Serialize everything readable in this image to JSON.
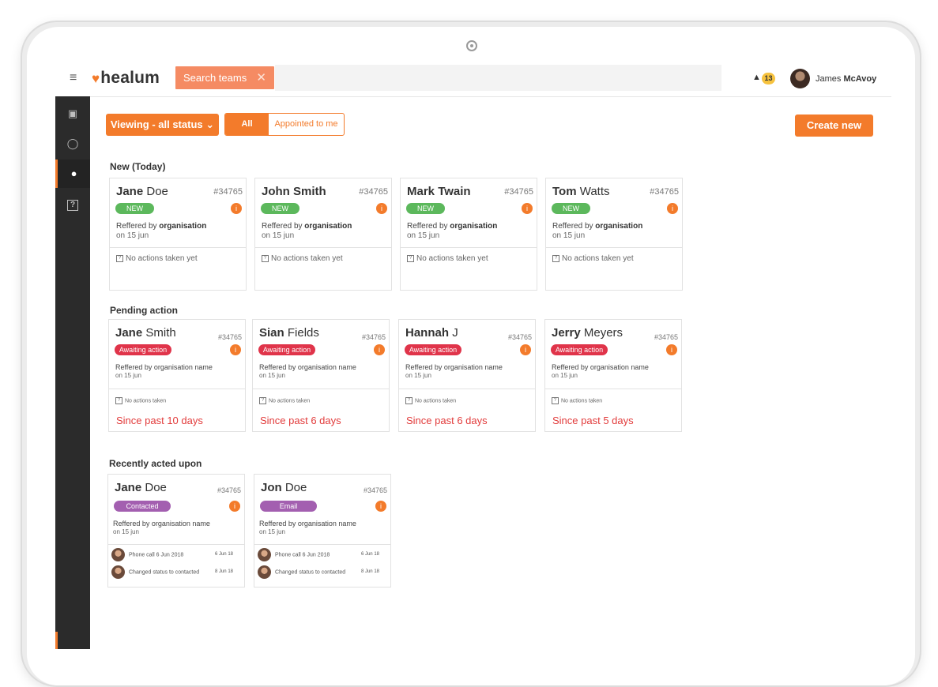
{
  "header": {
    "logo_text": "healum",
    "search_chip": "Search teams",
    "notification_count": "13",
    "user_first": "James",
    "user_last": "McAvoy"
  },
  "toolbar": {
    "viewing_label": "Viewing - all status",
    "filter_all": "All",
    "filter_mine": "Appointed to me",
    "create_label": "Create new"
  },
  "sections": {
    "new_title": "New (Today)",
    "pending_title": "Pending action",
    "recent_title": "Recently acted upon"
  },
  "new_cards": [
    {
      "first": "Jane",
      "last": "Doe",
      "id": "#34765",
      "badge": "NEW",
      "ref_prefix": "Reffered by",
      "ref_bold": "organisation",
      "date": "on 15 jun",
      "actions": "No actions taken yet"
    },
    {
      "first": "John",
      "last": "Smith",
      "id": "#34765",
      "badge": "NEW",
      "ref_prefix": "Reffered by",
      "ref_bold": "organisation",
      "date": "on 15 jun",
      "actions": "No actions taken yet"
    },
    {
      "first": "Mark",
      "last": "Twain",
      "id": "#34765",
      "badge": "NEW",
      "ref_prefix": "Reffered by",
      "ref_bold": "organisation",
      "date": "on 15 jun",
      "actions": "No actions taken yet"
    },
    {
      "first": "Tom",
      "last": "Watts",
      "id": "#34765",
      "badge": "NEW",
      "ref_prefix": "Reffered by",
      "ref_bold": "organisation",
      "date": "on 15 jun",
      "actions": "No actions taken yet"
    }
  ],
  "pending_cards": [
    {
      "first": "Jane",
      "last": "Smith",
      "id": "#34765",
      "badge": "Awaiting action",
      "ref": "Reffered by organisation name",
      "date": "on 15 jun",
      "actions": "No actions taken",
      "since": "Since past 10 days"
    },
    {
      "first": "Sian",
      "last": "Fields",
      "id": "#34765",
      "badge": "Awaiting action",
      "ref": "Reffered by organisation name",
      "date": "on 15 jun",
      "actions": "No actions taken",
      "since": "Since past 6 days"
    },
    {
      "first": "Hannah",
      "last": "J",
      "id": "#34765",
      "badge": "Awaiting action",
      "ref": "Reffered by organisation name",
      "date": "on 15 jun",
      "actions": "No actions taken",
      "since": "Since past 6 days"
    },
    {
      "first": "Jerry",
      "last": "Meyers",
      "id": "#34765",
      "badge": "Awaiting action",
      "ref": "Reffered by organisation name",
      "date": "on 15 jun",
      "actions": "No actions taken",
      "since": "Since past 5 days"
    }
  ],
  "recent_cards": [
    {
      "first": "Jane",
      "last": "Doe",
      "id": "#34765",
      "badge": "Contacted",
      "ref": "Reffered by organisation name",
      "date": "on 15 jun",
      "activity": [
        {
          "text": "Phone call 6 Jun 2018",
          "date": "6 Jun 18"
        },
        {
          "text": "Changed status to contacted",
          "date": "8 Jun 18"
        }
      ]
    },
    {
      "first": "Jon",
      "last": "Doe",
      "id": "#34765",
      "badge": "Email",
      "ref": "Reffered by organisation name",
      "date": "on 15 jun",
      "activity": [
        {
          "text": "Phone call 6 Jun 2018",
          "date": "6 Jun 18"
        },
        {
          "text": "Changed status to contacted",
          "date": "8 Jun 18"
        }
      ]
    }
  ],
  "colors": {
    "brand_orange": "#f37b2b",
    "new_badge": "#5cb85c",
    "awaiting_badge": "#e0344a",
    "contacted_badge": "#a35fb0",
    "since_red": "#e23b3b"
  },
  "icons": {
    "menu": "hamburger-icon",
    "logo": "heart-icon",
    "close": "close-icon",
    "notifications": "bell-icon",
    "sidebar": [
      "dashboard-icon",
      "chat-icon",
      "person-icon",
      "help-icon"
    ],
    "info": "info-icon",
    "no_actions": "question-box-icon"
  }
}
